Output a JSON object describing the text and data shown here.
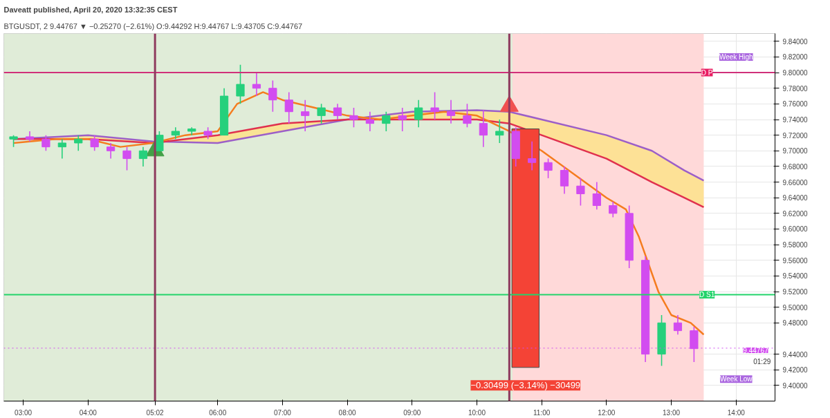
{
  "chart_data": {
    "type": "candlestick",
    "title": "Daveatt published, April 20, 2020 13:32:35 CEST",
    "subtitle": "BTGUSDT, 2  9.44767 ▼ −0.25270 (−2.61%) O:9.44292 H:9.44767 L:9.43705 C:9.44767",
    "xlim": [
      2.7,
      14.6
    ],
    "ylim": [
      9.38,
      9.85
    ],
    "xticks": [
      {
        "value": 3,
        "label": "03:00"
      },
      {
        "value": 4,
        "label": "04:00"
      },
      {
        "value": 5.0333,
        "label": "05:02"
      },
      {
        "value": 6,
        "label": "06:00"
      },
      {
        "value": 7,
        "label": "07:00"
      },
      {
        "value": 8,
        "label": "08:00"
      },
      {
        "value": 9,
        "label": "09:00"
      },
      {
        "value": 10,
        "label": "10:00"
      },
      {
        "value": 11,
        "label": "11:00"
      },
      {
        "value": 12,
        "label": "12:00"
      },
      {
        "value": 13,
        "label": "13:00"
      },
      {
        "value": 14,
        "label": "14:00"
      }
    ],
    "yticks": [
      {
        "value": 9.4,
        "label": "9.40000"
      },
      {
        "value": 9.42,
        "label": "9.42000"
      },
      {
        "value": 9.44,
        "label": "9.44000"
      },
      {
        "value": 9.48,
        "label": "9.48000"
      },
      {
        "value": 9.5,
        "label": "9.50000"
      },
      {
        "value": 9.52,
        "label": "9.52000"
      },
      {
        "value": 9.54,
        "label": "9.54000"
      },
      {
        "value": 9.56,
        "label": "9.56000"
      },
      {
        "value": 9.58,
        "label": "9.58000"
      },
      {
        "value": 9.6,
        "label": "9.60000"
      },
      {
        "value": 9.62,
        "label": "9.62000"
      },
      {
        "value": 9.64,
        "label": "9.64000"
      },
      {
        "value": 9.66,
        "label": "9.66000"
      },
      {
        "value": 9.68,
        "label": "9.68000"
      },
      {
        "value": 9.7,
        "label": "9.70000"
      },
      {
        "value": 9.72,
        "label": "9.72000"
      },
      {
        "value": 9.74,
        "label": "9.74000"
      },
      {
        "value": 9.76,
        "label": "9.76000"
      },
      {
        "value": 9.78,
        "label": "9.78000"
      },
      {
        "value": 9.8,
        "label": "9.80000"
      },
      {
        "value": 9.82,
        "label": "9.82000"
      },
      {
        "value": 9.84,
        "label": "9.84000"
      }
    ],
    "grid": true,
    "bands": [
      {
        "axis": "x",
        "from": 2.7,
        "to": 10.55,
        "color": "#e0ecd8"
      },
      {
        "axis": "x",
        "from": 10.55,
        "to": 13.5,
        "color": "#ffd9d9"
      }
    ],
    "ref_lines": [
      {
        "axis": "y",
        "value": 9.8,
        "color": "#d0307a",
        "line_style": "solid"
      },
      {
        "axis": "y",
        "value": 9.516,
        "color": "#22d36a",
        "line_style": "solid"
      },
      {
        "axis": "y",
        "value": 9.44767,
        "label": "9.44767",
        "color": "#d24cf0",
        "line_style": "dotted"
      },
      {
        "axis": "x",
        "value": 5.0333,
        "color": "#8e3a5e",
        "line_style": "solid"
      },
      {
        "axis": "x",
        "value": 10.5,
        "color": "#8e3a5e",
        "line_style": "solid"
      }
    ],
    "series": [
      {
        "type": "line",
        "color": "#9c5fc8",
        "x": [
          2.85,
          4,
          5,
          6,
          7,
          8,
          9,
          10,
          10.5,
          11,
          12,
          12.7,
          13.2,
          13.5
        ],
        "values": [
          9.715,
          9.72,
          9.712,
          9.71,
          9.725,
          9.74,
          9.75,
          9.752,
          9.75,
          9.74,
          9.72,
          9.7,
          9.675,
          9.662
        ],
        "lower": [
          9.715,
          9.715,
          9.71,
          9.72,
          9.735,
          9.74,
          9.74,
          9.74,
          9.735,
          9.72,
          9.69,
          9.66,
          9.64,
          9.628
        ],
        "upper": [
          9.715,
          9.72,
          9.712,
          9.71,
          9.725,
          9.74,
          9.75,
          9.752,
          9.75,
          9.74,
          9.72,
          9.7,
          9.675,
          9.662
        ]
      },
      {
        "type": "line",
        "color": "#e0304e",
        "x": [
          2.85,
          4,
          5,
          6,
          7,
          8,
          9,
          10,
          10.5,
          11,
          12,
          12.7,
          13.2,
          13.5
        ],
        "values": [
          9.715,
          9.715,
          9.71,
          9.72,
          9.735,
          9.74,
          9.74,
          9.74,
          9.735,
          9.72,
          9.69,
          9.66,
          9.64,
          9.628
        ]
      },
      {
        "type": "line",
        "color": "#f57c1f",
        "x": [
          2.85,
          3.5,
          4,
          4.5,
          5,
          5.5,
          6,
          6.3,
          6.7,
          7,
          7.5,
          8,
          8.5,
          9,
          9.5,
          10,
          10.5,
          11,
          11.5,
          12,
          12.3,
          12.5,
          12.8,
          13,
          13.3,
          13.5
        ],
        "values": [
          9.71,
          9.715,
          9.715,
          9.705,
          9.71,
          9.72,
          9.725,
          9.76,
          9.775,
          9.765,
          9.755,
          9.745,
          9.74,
          9.745,
          9.75,
          9.745,
          9.725,
          9.7,
          9.67,
          9.64,
          9.625,
          9.59,
          9.52,
          9.49,
          9.48,
          9.465
        ]
      },
      {
        "x": [
          2.85,
          3.1,
          3.35,
          3.6,
          3.85,
          4.1,
          4.35,
          4.6,
          4.85,
          5.1,
          5.35,
          5.6,
          5.85,
          6.1,
          6.35,
          6.6,
          6.85,
          7.1,
          7.35,
          7.6,
          7.85,
          8.1,
          8.35,
          8.6,
          8.85,
          9.1,
          9.35,
          9.6,
          9.85,
          10.1,
          10.35,
          10.6,
          10.85,
          11.1,
          11.35,
          11.6,
          11.85,
          12.1,
          12.35,
          12.6,
          12.85,
          13.1,
          13.35
        ],
        "ohlc": [
          [
            9.715,
            9.72,
            9.705,
            9.718
          ],
          [
            9.718,
            9.725,
            9.712,
            9.715
          ],
          [
            9.715,
            9.72,
            9.7,
            9.705
          ],
          [
            9.705,
            9.715,
            9.69,
            9.71
          ],
          [
            9.71,
            9.72,
            9.7,
            9.715
          ],
          [
            9.715,
            9.72,
            9.7,
            9.705
          ],
          [
            9.705,
            9.71,
            9.69,
            9.7
          ],
          [
            9.7,
            9.705,
            9.675,
            9.69
          ],
          [
            9.69,
            9.705,
            9.68,
            9.7
          ],
          [
            9.7,
            9.725,
            9.7,
            9.72
          ],
          [
            9.72,
            9.73,
            9.715,
            9.725
          ],
          [
            9.725,
            9.73,
            9.72,
            9.728
          ],
          [
            9.725,
            9.73,
            9.715,
            9.72
          ],
          [
            9.72,
            9.78,
            9.72,
            9.77
          ],
          [
            9.77,
            9.81,
            9.76,
            9.785
          ],
          [
            9.785,
            9.8,
            9.77,
            9.78
          ],
          [
            9.78,
            9.79,
            9.75,
            9.765
          ],
          [
            9.765,
            9.775,
            9.735,
            9.75
          ],
          [
            9.75,
            9.765,
            9.725,
            9.745
          ],
          [
            9.745,
            9.76,
            9.735,
            9.755
          ],
          [
            9.755,
            9.76,
            9.74,
            9.745
          ],
          [
            9.745,
            9.755,
            9.73,
            9.74
          ],
          [
            9.74,
            9.75,
            9.725,
            9.735
          ],
          [
            9.735,
            9.75,
            9.725,
            9.745
          ],
          [
            9.745,
            9.755,
            9.725,
            9.74
          ],
          [
            9.74,
            9.765,
            9.73,
            9.755
          ],
          [
            9.755,
            9.775,
            9.74,
            9.75
          ],
          [
            9.75,
            9.765,
            9.735,
            9.745
          ],
          [
            9.745,
            9.76,
            9.73,
            9.735
          ],
          [
            9.735,
            9.752,
            9.705,
            9.72
          ],
          [
            9.72,
            9.74,
            9.71,
            9.725
          ],
          [
            9.725,
            9.73,
            9.68,
            9.69
          ],
          [
            9.69,
            9.712,
            9.675,
            9.685
          ],
          [
            9.685,
            9.69,
            9.665,
            9.675
          ],
          [
            9.675,
            9.68,
            9.645,
            9.655
          ],
          [
            9.655,
            9.665,
            9.63,
            9.645
          ],
          [
            9.645,
            9.66,
            9.625,
            9.63
          ],
          [
            9.63,
            9.635,
            9.615,
            9.62
          ],
          [
            9.62,
            9.63,
            9.55,
            9.56
          ],
          [
            9.56,
            9.565,
            9.43,
            9.44
          ],
          [
            9.44,
            9.49,
            9.425,
            9.48
          ],
          [
            9.48,
            9.49,
            9.465,
            9.47
          ],
          [
            9.47,
            9.475,
            9.43,
            9.447
          ]
        ],
        "colors": [
          "#26d07c",
          "#d24cf0",
          "#d24cf0",
          "#26d07c",
          "#26d07c",
          "#d24cf0",
          "#d24cf0",
          "#d24cf0",
          "#26d07c",
          "#26d07c",
          "#26d07c",
          "#26d07c",
          "#d24cf0",
          "#26d07c",
          "#26d07c",
          "#d24cf0",
          "#d24cf0",
          "#d24cf0",
          "#d24cf0",
          "#26d07c",
          "#d24cf0",
          "#d24cf0",
          "#d24cf0",
          "#26d07c",
          "#d24cf0",
          "#26d07c",
          "#d24cf0",
          "#d24cf0",
          "#d24cf0",
          "#d24cf0",
          "#26d07c",
          "#d24cf0",
          "#d24cf0",
          "#d24cf0",
          "#d24cf0",
          "#d24cf0",
          "#d24cf0",
          "#d24cf0",
          "#d24cf0",
          "#d24cf0",
          "#26d07c",
          "#d24cf0",
          "#d24cf0"
        ]
      },
      {
        "type": "scatter",
        "marker": "triangle",
        "color": "#43a047",
        "x": [
          5.0333
        ],
        "values": [
          9.7
        ]
      },
      {
        "type": "scatter",
        "marker": "triangle",
        "color": "#f05050",
        "x": [
          10.5
        ],
        "values": [
          9.757
        ]
      },
      {
        "type": "bar",
        "color": "#f44336",
        "x": [
          10.75
        ],
        "base": [
          9.728
        ],
        "values": [
          -0.305
        ]
      }
    ],
    "annotations": [
      "−0.30499 (−3.14%) −30499",
      "D P",
      "Week High",
      "D S1",
      "Week Low",
      "01:29"
    ]
  }
}
